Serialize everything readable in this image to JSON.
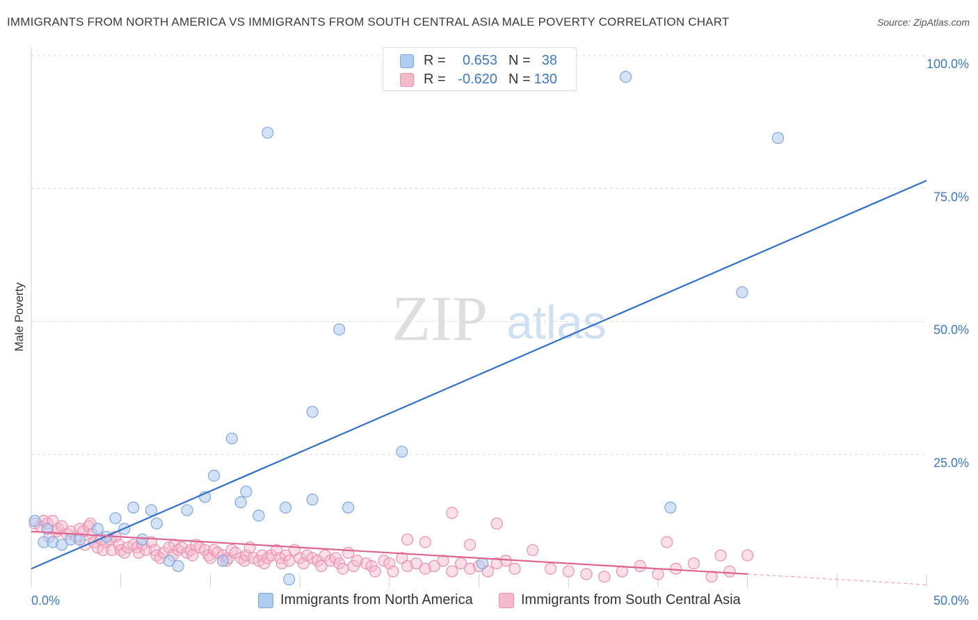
{
  "header": {
    "title": "IMMIGRANTS FROM NORTH AMERICA VS IMMIGRANTS FROM SOUTH CENTRAL ASIA MALE POVERTY CORRELATION CHART",
    "source": "Source: ZipAtlas.com"
  },
  "legend": {
    "rows": [
      {
        "r_label": "R =",
        "r_value": "0.653",
        "n_label": "N =",
        "n_value": "38"
      },
      {
        "r_label": "R =",
        "r_value": "-0.620",
        "n_label": "N =",
        "n_value": "130"
      }
    ]
  },
  "watermark": {
    "zip": "ZIP",
    "atlas": "atlas"
  },
  "colors": {
    "blue_fill": "#aecbf0",
    "blue_stroke": "#7ea8dc",
    "blue_line": "#2d6fcc",
    "pink_fill": "#f6b8cb",
    "pink_stroke": "#ec8fab",
    "pink_line": "#e0628f",
    "tick_label": "#3a78c7",
    "grid": "#d9d9d9"
  },
  "chart_data": {
    "type": "scatter",
    "title": "IMMIGRANTS FROM NORTH AMERICA VS IMMIGRANTS FROM SOUTH CENTRAL ASIA MALE POVERTY CORRELATION CHART",
    "xlabel": "",
    "ylabel": "Male Poverty",
    "xlim": [
      0,
      50
    ],
    "ylim": [
      0,
      100
    ],
    "x_tick_labels": [
      "0.0%",
      "50.0%"
    ],
    "y_tick_values": [
      25,
      50,
      75,
      100
    ],
    "y_tick_labels": [
      "25.0%",
      "50.0%",
      "75.0%",
      "100.0%"
    ],
    "grid": "horizontal dashed",
    "legend_position": "top-center",
    "series": [
      {
        "name": "Immigrants from North America",
        "color": "#aecbf0",
        "r": 0.653,
        "n": 38,
        "trend": {
          "x": [
            0,
            50
          ],
          "y": [
            3.5,
            76.5
          ]
        },
        "points": [
          [
            0.2,
            12.5
          ],
          [
            0.7,
            8.5
          ],
          [
            1.2,
            8.5
          ],
          [
            1.7,
            8.0
          ],
          [
            2.2,
            9.0
          ],
          [
            2.7,
            9.0
          ],
          [
            3.7,
            11.0
          ],
          [
            4.2,
            9.5
          ],
          [
            4.7,
            13.0
          ],
          [
            5.2,
            11.0
          ],
          [
            5.7,
            15.0
          ],
          [
            6.2,
            9.0
          ],
          [
            6.7,
            14.5
          ],
          [
            7.0,
            12.0
          ],
          [
            7.7,
            5.0
          ],
          [
            8.2,
            4.0
          ],
          [
            8.7,
            14.5
          ],
          [
            9.7,
            17.0
          ],
          [
            10.2,
            21.0
          ],
          [
            10.7,
            5.0
          ],
          [
            11.2,
            28.0
          ],
          [
            11.7,
            16.0
          ],
          [
            12.0,
            18.0
          ],
          [
            12.7,
            13.5
          ],
          [
            13.2,
            85.5
          ],
          [
            14.2,
            15.0
          ],
          [
            14.4,
            1.5
          ],
          [
            15.7,
            16.5
          ],
          [
            15.7,
            33.0
          ],
          [
            17.2,
            48.5
          ],
          [
            17.7,
            15.0
          ],
          [
            20.7,
            25.5
          ],
          [
            25.2,
            4.5
          ],
          [
            33.2,
            96.0
          ],
          [
            39.7,
            55.5
          ],
          [
            41.7,
            84.5
          ],
          [
            35.7,
            15.0
          ],
          [
            0.9,
            11.0
          ]
        ]
      },
      {
        "name": "Immigrants from South Central Asia",
        "color": "#f6b8cb",
        "r": -0.62,
        "n": 130,
        "trend": {
          "x": [
            0,
            40
          ],
          "y": [
            10.5,
            2.5
          ],
          "dashed_to": [
            50,
            0.5
          ]
        },
        "points": [
          [
            0.2,
            12.0
          ],
          [
            0.5,
            11.5
          ],
          [
            0.7,
            12.5
          ],
          [
            0.9,
            12.0
          ],
          [
            1.2,
            12.5
          ],
          [
            1.4,
            10.5
          ],
          [
            1.5,
            11.0
          ],
          [
            1.7,
            11.5
          ],
          [
            2.0,
            10.0
          ],
          [
            2.2,
            10.5
          ],
          [
            2.5,
            9.5
          ],
          [
            2.7,
            11.0
          ],
          [
            2.9,
            10.5
          ],
          [
            3.0,
            8.0
          ],
          [
            3.2,
            11.5
          ],
          [
            3.4,
            10.0
          ],
          [
            3.5,
            8.5
          ],
          [
            3.7,
            7.5
          ],
          [
            3.9,
            9.0
          ],
          [
            4.0,
            7.0
          ],
          [
            4.2,
            8.5
          ],
          [
            4.4,
            9.0
          ],
          [
            4.5,
            7.0
          ],
          [
            4.7,
            9.5
          ],
          [
            4.9,
            8.0
          ],
          [
            5.0,
            7.0
          ],
          [
            5.2,
            6.5
          ],
          [
            5.4,
            7.5
          ],
          [
            5.7,
            8.0
          ],
          [
            5.9,
            7.5
          ],
          [
            6.0,
            6.5
          ],
          [
            6.2,
            8.0
          ],
          [
            6.4,
            7.0
          ],
          [
            6.7,
            8.5
          ],
          [
            6.9,
            7.0
          ],
          [
            7.0,
            6.0
          ],
          [
            7.2,
            5.5
          ],
          [
            7.4,
            6.5
          ],
          [
            7.7,
            7.5
          ],
          [
            7.9,
            6.0
          ],
          [
            8.0,
            8.0
          ],
          [
            8.2,
            7.0
          ],
          [
            8.4,
            7.5
          ],
          [
            8.7,
            6.5
          ],
          [
            8.9,
            7.0
          ],
          [
            9.0,
            6.0
          ],
          [
            9.2,
            8.0
          ],
          [
            9.4,
            7.5
          ],
          [
            9.7,
            7.0
          ],
          [
            9.9,
            6.0
          ],
          [
            10.0,
            5.5
          ],
          [
            10.2,
            7.0
          ],
          [
            10.4,
            6.5
          ],
          [
            10.7,
            6.0
          ],
          [
            10.9,
            5.0
          ],
          [
            11.0,
            5.5
          ],
          [
            11.2,
            7.0
          ],
          [
            11.4,
            6.5
          ],
          [
            11.7,
            5.5
          ],
          [
            11.9,
            5.0
          ],
          [
            12.0,
            6.0
          ],
          [
            12.2,
            7.5
          ],
          [
            12.4,
            5.5
          ],
          [
            12.7,
            5.0
          ],
          [
            12.9,
            6.0
          ],
          [
            13.0,
            4.5
          ],
          [
            13.2,
            5.5
          ],
          [
            13.4,
            6.0
          ],
          [
            13.7,
            7.0
          ],
          [
            13.9,
            5.5
          ],
          [
            14.0,
            4.5
          ],
          [
            14.2,
            6.0
          ],
          [
            14.4,
            5.0
          ],
          [
            14.7,
            7.0
          ],
          [
            15.0,
            5.5
          ],
          [
            15.2,
            4.5
          ],
          [
            15.4,
            6.0
          ],
          [
            15.7,
            5.5
          ],
          [
            16.0,
            5.0
          ],
          [
            16.2,
            4.0
          ],
          [
            16.4,
            6.0
          ],
          [
            16.7,
            5.0
          ],
          [
            17.0,
            5.5
          ],
          [
            17.2,
            4.5
          ],
          [
            17.4,
            3.5
          ],
          [
            17.7,
            6.5
          ],
          [
            18.0,
            4.0
          ],
          [
            18.2,
            5.0
          ],
          [
            18.7,
            4.5
          ],
          [
            19.0,
            4.0
          ],
          [
            19.2,
            3.0
          ],
          [
            19.7,
            5.0
          ],
          [
            20.0,
            4.5
          ],
          [
            20.2,
            3.0
          ],
          [
            20.7,
            5.5
          ],
          [
            21.0,
            4.0
          ],
          [
            21.5,
            4.5
          ],
          [
            22.0,
            3.5
          ],
          [
            22.5,
            4.0
          ],
          [
            23.0,
            5.0
          ],
          [
            23.5,
            3.0
          ],
          [
            24.0,
            4.5
          ],
          [
            24.5,
            3.5
          ],
          [
            25.0,
            4.0
          ],
          [
            25.5,
            3.0
          ],
          [
            26.0,
            4.5
          ],
          [
            26.5,
            5.0
          ],
          [
            27.0,
            3.5
          ],
          [
            28.0,
            7.0
          ],
          [
            29.0,
            3.5
          ],
          [
            30.0,
            3.0
          ],
          [
            31.0,
            2.5
          ],
          [
            32.0,
            2.0
          ],
          [
            33.0,
            3.0
          ],
          [
            34.0,
            4.0
          ],
          [
            35.0,
            2.5
          ],
          [
            36.0,
            3.5
          ],
          [
            37.0,
            4.5
          ],
          [
            38.0,
            2.0
          ],
          [
            39.0,
            3.0
          ],
          [
            40.0,
            6.0
          ],
          [
            22.0,
            8.5
          ],
          [
            23.5,
            14.0
          ],
          [
            26.0,
            12.0
          ],
          [
            21.0,
            9.0
          ],
          [
            24.5,
            8.0
          ],
          [
            35.5,
            8.5
          ],
          [
            38.5,
            6.0
          ],
          [
            1.0,
            9.5
          ],
          [
            3.3,
            12.0
          ]
        ]
      }
    ]
  },
  "bottom_legend": {
    "items": [
      {
        "label": "Immigrants from North America"
      },
      {
        "label": "Immigrants from South Central Asia"
      }
    ]
  }
}
